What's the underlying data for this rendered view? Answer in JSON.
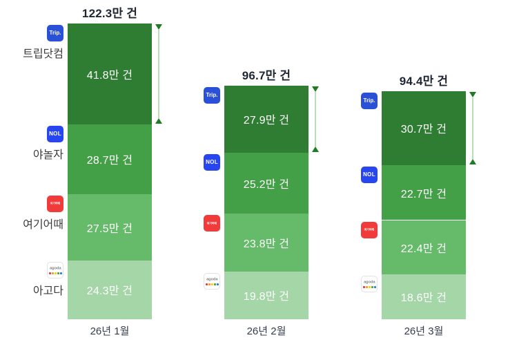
{
  "chart_data": {
    "type": "bar",
    "stacked": true,
    "title": "",
    "unit": "만 건",
    "grid": false,
    "categories": [
      "26년 1월",
      "26년 2월",
      "26년 3월"
    ],
    "totals": [
      122.3,
      96.7,
      94.4
    ],
    "total_labels": [
      "122.3만 건",
      "96.7만 건",
      "94.4만 건"
    ],
    "series": [
      {
        "name": "트립닷컴",
        "logo": "trip",
        "color": "#2e7d32",
        "values": [
          41.8,
          27.9,
          30.7
        ],
        "value_labels": [
          "41.8만 건",
          "27.9만 건",
          "30.7만 건"
        ]
      },
      {
        "name": "야놀자",
        "logo": "nol",
        "color": "#43a047",
        "values": [
          28.7,
          25.2,
          22.7
        ],
        "value_labels": [
          "28.7만 건",
          "25.2만 건",
          "22.7만 건"
        ]
      },
      {
        "name": "여기어때",
        "logo": "yeogi",
        "color": "#66bb6a",
        "values": [
          27.5,
          23.8,
          22.4
        ],
        "value_labels": [
          "27.5만 건",
          "23.8만 건",
          "22.4만 건"
        ]
      },
      {
        "name": "아고다",
        "logo": "agoda",
        "color": "#a5d6a7",
        "values": [
          24.3,
          19.8,
          18.6
        ],
        "value_labels": [
          "24.3만 건",
          "19.8만 건",
          "18.6만 건"
        ]
      }
    ],
    "legend_position": "logos-left-of-bars; app names only beside first bar",
    "annotations": "vertical double-headed arrow beside each bar spanning the top (트립닷컴) segment"
  },
  "logos": {
    "trip": {
      "text": "Trip.",
      "bg": "#2b50d8",
      "fg": "#ffffff"
    },
    "nol": {
      "text": "NOL",
      "bg": "#2746ef",
      "fg": "#ffffff"
    },
    "yeogi": {
      "text": "여기어때",
      "bg": "#f13b3b",
      "fg": "#ffffff"
    },
    "agoda": {
      "text": "agoda",
      "bg": "#ffffff",
      "fg": "#7a8089",
      "dot_colors": [
        "#e23c44",
        "#f59c1d",
        "#f2cf1b",
        "#48a43f",
        "#2b7de0"
      ]
    }
  },
  "style": {
    "background": "#ffffff",
    "segment_colors": [
      "#2e7d32",
      "#43a047",
      "#66bb6a",
      "#a5d6a7"
    ],
    "title_color": "#1e2633",
    "axis_label_color": "#333c4a",
    "app_label_color": "#3c3c3c",
    "value_text_color": "#ffffff",
    "arrow_line_color": "#b9dcb9",
    "arrow_head_color": "#1e7d22"
  }
}
